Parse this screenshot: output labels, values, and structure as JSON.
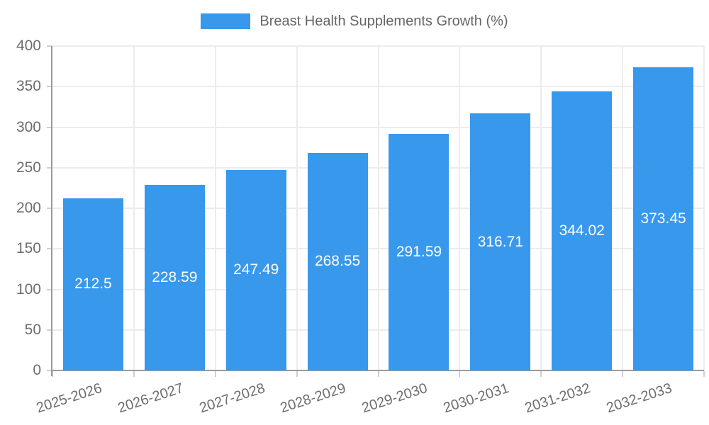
{
  "legend": {
    "label": "Breast Health Supplements Growth (%)",
    "swatch_color": "#3898ec",
    "position": "top"
  },
  "chart_data": {
    "type": "bar",
    "title": "Breast Health Supplements Growth (%)",
    "categories": [
      "2025-2026",
      "2026-2027",
      "2027-2028",
      "2028-2029",
      "2029-2030",
      "2030-2031",
      "2031-2032",
      "2032-2033"
    ],
    "values": [
      212.5,
      228.59,
      247.49,
      268.55,
      291.59,
      316.71,
      344.02,
      373.45
    ],
    "value_labels": [
      "212.5",
      "228.59",
      "247.49",
      "268.55",
      "291.59",
      "316.71",
      "344.02",
      "373.45"
    ],
    "xlabel": "",
    "ylabel": "",
    "ylim": [
      0,
      400
    ],
    "yticks": [
      0,
      50,
      100,
      150,
      200,
      250,
      300,
      350,
      400
    ],
    "grid": true,
    "legend_position": "top",
    "bar_color": "#3898ec",
    "value_label_color": "#ffffff",
    "axis_color": "#9b9b9b",
    "gridline_color": "#ececec",
    "tick_label_color": "#6e6e6e"
  }
}
